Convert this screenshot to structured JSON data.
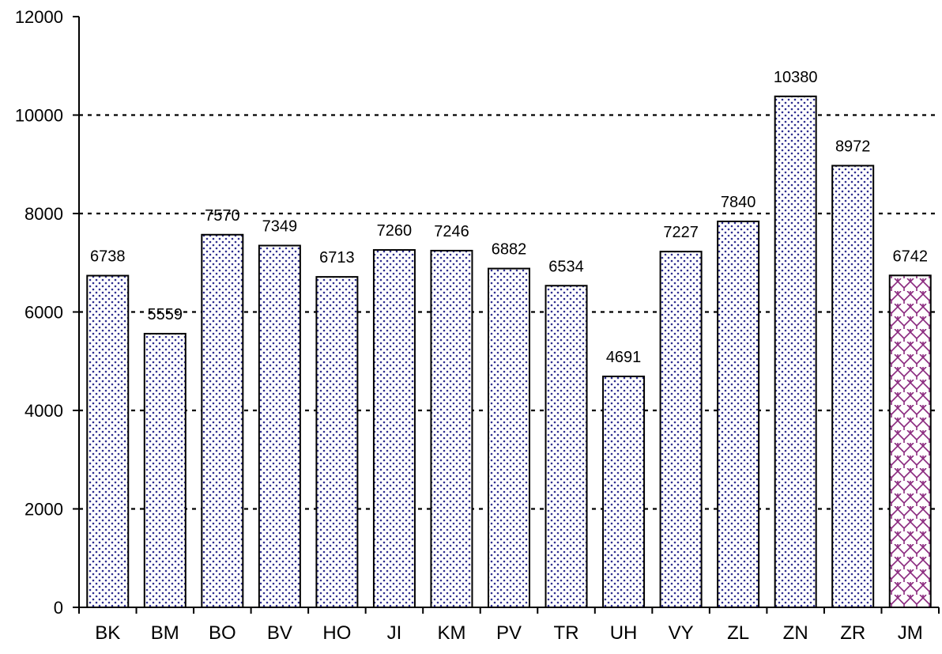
{
  "chart_data": {
    "type": "bar",
    "title": "",
    "xlabel": "",
    "ylabel": "",
    "categories": [
      "BK",
      "BM",
      "BO",
      "BV",
      "HO",
      "JI",
      "KM",
      "PV",
      "TR",
      "UH",
      "VY",
      "ZL",
      "ZN",
      "ZR",
      "JM"
    ],
    "values": [
      6738,
      5559,
      7570,
      7349,
      6713,
      7260,
      7246,
      6882,
      6534,
      4691,
      7227,
      7840,
      10380,
      8972,
      6742
    ],
    "value_labels": [
      "6738",
      "5559",
      "7570",
      "7349",
      "6713",
      "7260",
      "7246",
      "6882",
      "6534",
      "4691",
      "7227",
      "7840",
      "10380",
      "8972",
      "6742"
    ],
    "ylim": [
      0,
      12000
    ],
    "yticks": [
      0,
      2000,
      4000,
      6000,
      8000,
      10000,
      12000
    ],
    "ytick_labels": [
      "0",
      "2000",
      "4000",
      "6000",
      "8000",
      "10000",
      "12000"
    ],
    "grid": "dashed horizontal",
    "legend": "none",
    "patterns": [
      "dots",
      "dots",
      "dots",
      "dots",
      "dots",
      "dots",
      "dots",
      "dots",
      "dots",
      "dots",
      "dots",
      "dots",
      "dots",
      "dots",
      "brick"
    ],
    "colors": {
      "dots": "#2e2e8f",
      "brick": "#8b2a7f",
      "bar_fill": "#ffffff",
      "outline": "#000000",
      "grid": "#000000"
    }
  }
}
